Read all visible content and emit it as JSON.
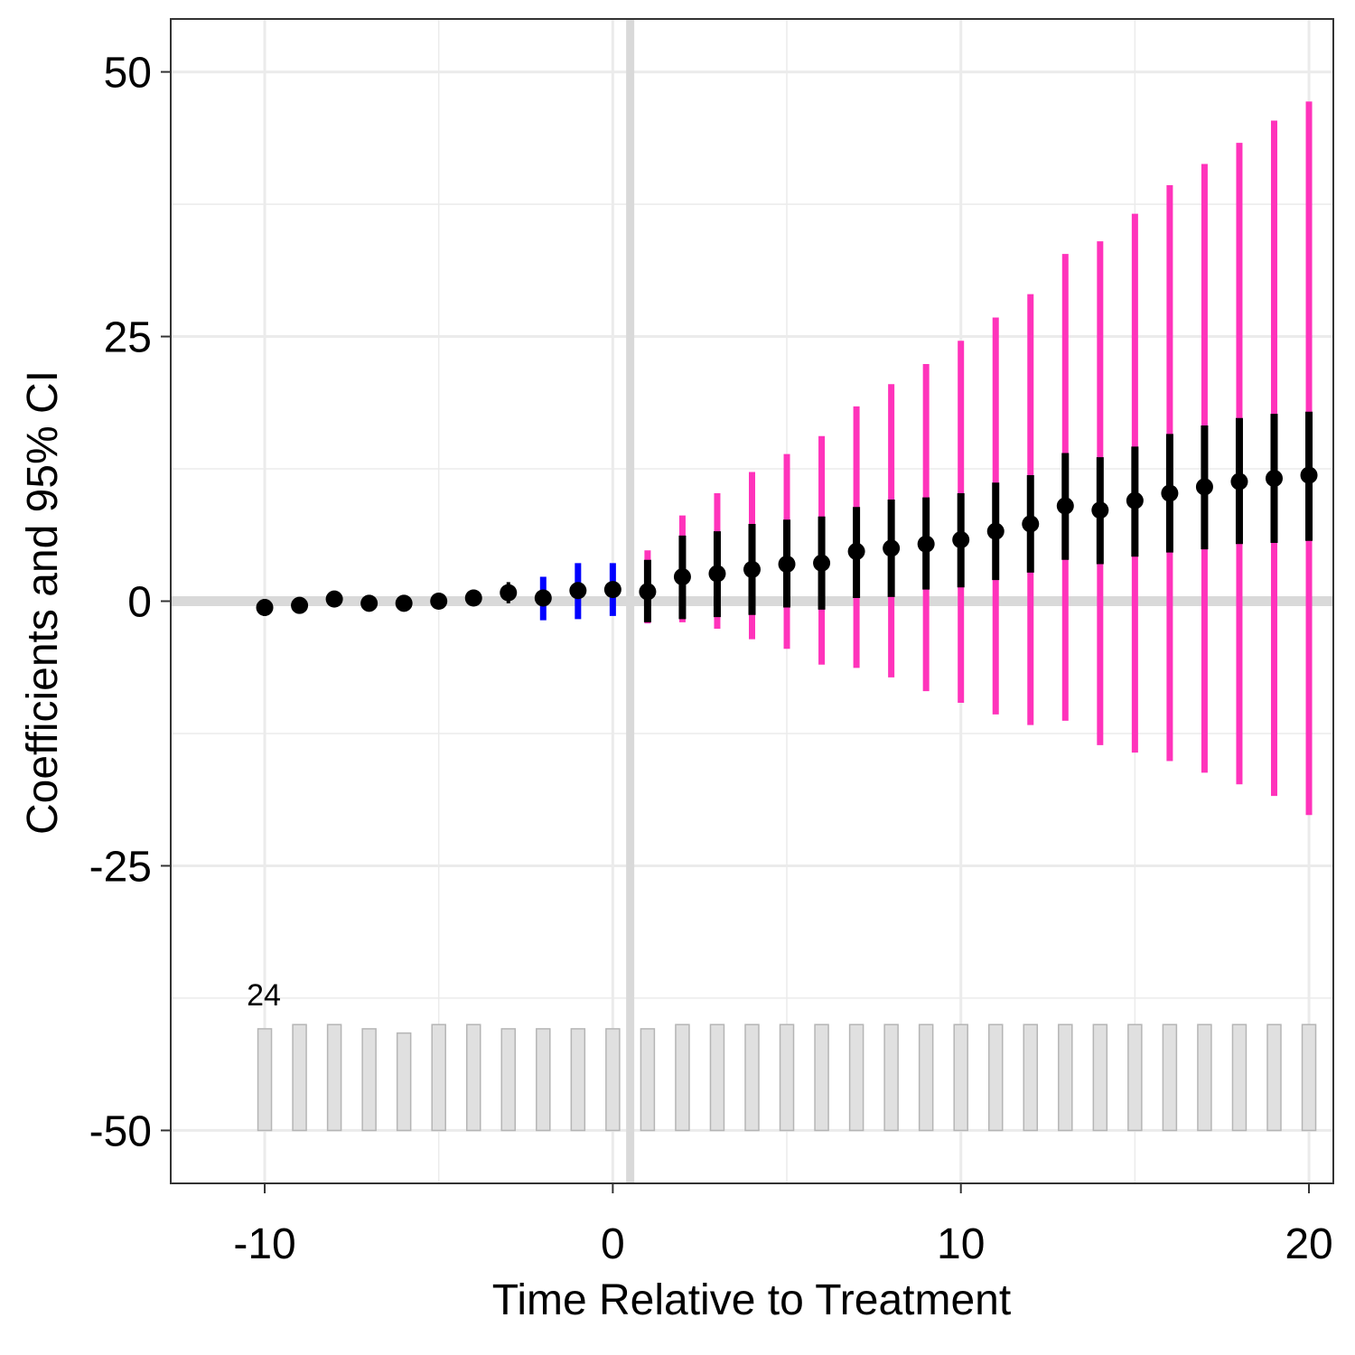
{
  "chart_data": {
    "type": "scatter",
    "subtype": "event-study coefficient plot with error bars and count bars",
    "xlabel": "Time Relative to Treatment",
    "ylabel": "Coefficients and 95% CI",
    "xlim": [
      -12.7,
      20.7
    ],
    "ylim": [
      -55,
      55
    ],
    "x_ticks": [
      -10,
      0,
      10,
      20
    ],
    "x_tick_labels": [
      "-10",
      "0",
      "10",
      "20"
    ],
    "y_ticks": [
      -50,
      -25,
      0,
      25,
      50
    ],
    "y_tick_labels": [
      "-50",
      "-25",
      "0",
      "25",
      "50"
    ],
    "grid": true,
    "reference_lines": {
      "x": 0.5,
      "y": 0
    },
    "count_annotation": "24",
    "colors": {
      "point": "#000000",
      "ci_inner": "#000000",
      "ci_outer": "#FF33BB",
      "ci_placebo": "#0000FF",
      "count_bar_fill": "#E0E0E0",
      "count_bar_stroke": "#B5B5B5",
      "reference_line": "#D9D9D9",
      "grid": "#EBEBEB"
    },
    "points": [
      {
        "x": -10,
        "y": -0.6,
        "lo": -1.4,
        "hi": 0.2
      },
      {
        "x": -9,
        "y": -0.4,
        "lo": -0.9,
        "hi": 0.1
      },
      {
        "x": -8,
        "y": 0.2,
        "lo": -0.3,
        "hi": 0.7
      },
      {
        "x": -7,
        "y": -0.2,
        "lo": -0.6,
        "hi": 0.2
      },
      {
        "x": -6,
        "y": -0.2,
        "lo": -0.6,
        "hi": 0.2
      },
      {
        "x": -5,
        "y": 0.0,
        "lo": -0.4,
        "hi": 0.4
      },
      {
        "x": -4,
        "y": 0.3,
        "lo": -0.1,
        "hi": 0.7
      },
      {
        "x": -3,
        "y": 0.8,
        "lo": -0.2,
        "hi": 1.8
      },
      {
        "x": -2,
        "y": 0.3,
        "lo": -1.8,
        "hi": 2.3,
        "band": "placebo"
      },
      {
        "x": -1,
        "y": 1.0,
        "lo": -1.7,
        "hi": 3.6,
        "band": "placebo"
      },
      {
        "x": 0,
        "y": 1.1,
        "lo": -1.4,
        "hi": 3.6,
        "band": "placebo"
      },
      {
        "x": 1,
        "y": 0.9,
        "lo": -2.0,
        "hi": 3.9,
        "outer_lo": -2.1,
        "outer_hi": 4.8
      },
      {
        "x": 2,
        "y": 2.3,
        "lo": -1.7,
        "hi": 6.2,
        "outer_lo": -2.0,
        "outer_hi": 8.1
      },
      {
        "x": 3,
        "y": 2.6,
        "lo": -1.5,
        "hi": 6.6,
        "outer_lo": -2.6,
        "outer_hi": 10.2
      },
      {
        "x": 4,
        "y": 3.0,
        "lo": -1.3,
        "hi": 7.3,
        "outer_lo": -3.6,
        "outer_hi": 12.2
      },
      {
        "x": 5,
        "y": 3.5,
        "lo": -0.6,
        "hi": 7.7,
        "outer_lo": -4.5,
        "outer_hi": 13.9
      },
      {
        "x": 6,
        "y": 3.6,
        "lo": -0.8,
        "hi": 8.0,
        "outer_lo": -6.0,
        "outer_hi": 15.6
      },
      {
        "x": 7,
        "y": 4.7,
        "lo": 0.3,
        "hi": 8.9,
        "outer_lo": -6.3,
        "outer_hi": 18.4
      },
      {
        "x": 8,
        "y": 5.0,
        "lo": 0.4,
        "hi": 9.6,
        "outer_lo": -7.2,
        "outer_hi": 20.5
      },
      {
        "x": 9,
        "y": 5.4,
        "lo": 1.1,
        "hi": 9.8,
        "outer_lo": -8.5,
        "outer_hi": 22.4
      },
      {
        "x": 10,
        "y": 5.8,
        "lo": 1.3,
        "hi": 10.2,
        "outer_lo": -9.6,
        "outer_hi": 24.6
      },
      {
        "x": 11,
        "y": 6.6,
        "lo": 2.0,
        "hi": 11.2,
        "outer_lo": -10.7,
        "outer_hi": 26.8
      },
      {
        "x": 12,
        "y": 7.3,
        "lo": 2.7,
        "hi": 11.9,
        "outer_lo": -11.7,
        "outer_hi": 29.0
      },
      {
        "x": 13,
        "y": 9.0,
        "lo": 3.9,
        "hi": 14.0,
        "outer_lo": -11.3,
        "outer_hi": 32.8
      },
      {
        "x": 14,
        "y": 8.6,
        "lo": 3.5,
        "hi": 13.6,
        "outer_lo": -13.6,
        "outer_hi": 34.0
      },
      {
        "x": 15,
        "y": 9.5,
        "lo": 4.2,
        "hi": 14.6,
        "outer_lo": -14.3,
        "outer_hi": 36.6
      },
      {
        "x": 16,
        "y": 10.2,
        "lo": 4.6,
        "hi": 15.8,
        "outer_lo": -15.1,
        "outer_hi": 39.3
      },
      {
        "x": 17,
        "y": 10.8,
        "lo": 4.9,
        "hi": 16.6,
        "outer_lo": -16.2,
        "outer_hi": 41.3
      },
      {
        "x": 18,
        "y": 11.3,
        "lo": 5.4,
        "hi": 17.3,
        "outer_lo": -17.3,
        "outer_hi": 43.3
      },
      {
        "x": 19,
        "y": 11.6,
        "lo": 5.5,
        "hi": 17.7,
        "outer_lo": -18.4,
        "outer_hi": 45.4
      },
      {
        "x": 20,
        "y": 11.9,
        "lo": 5.7,
        "hi": 17.9,
        "outer_lo": -20.2,
        "outer_hi": 47.2
      }
    ],
    "count_bars": {
      "x": [
        -10,
        -9,
        -8,
        -7,
        -6,
        -5,
        -4,
        -3,
        -2,
        -1,
        0,
        1,
        2,
        3,
        4,
        5,
        6,
        7,
        8,
        9,
        10,
        11,
        12,
        13,
        14,
        15,
        16,
        17,
        18,
        19,
        20
      ],
      "values": [
        24,
        25,
        25,
        24,
        23,
        25,
        25,
        24,
        24,
        24,
        24,
        24,
        25,
        25,
        25,
        25,
        25,
        25,
        25,
        25,
        25,
        25,
        25,
        25,
        25,
        25,
        25,
        25,
        25,
        25,
        25
      ],
      "baseline": -50,
      "max_height": 10
    }
  }
}
